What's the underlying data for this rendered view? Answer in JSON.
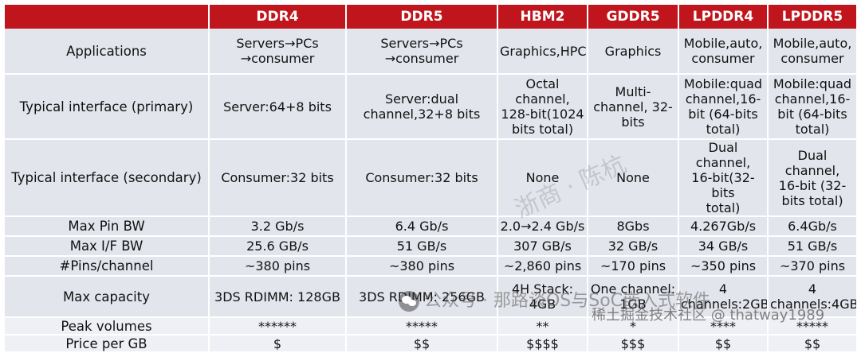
{
  "header": [
    "",
    "DDR4",
    "DDR5",
    "HBM2",
    "GDDR5",
    "LPDDR4",
    "LPDDR5"
  ],
  "rows": [
    [
      "Applications",
      "Servers→PCs\n→consumer",
      "Servers→PCs\n→consumer",
      "Graphics,HPC",
      "Graphics",
      "Mobile,auto,\nconsumer",
      "Mobile,auto,\nconsumer"
    ],
    [
      "Typical interface (primary)",
      "Server:64+8 bits",
      "Server:dual\nchannel,32+8 bits",
      "Octal channel,\n128-bit(1024\nbits total)",
      "Multi-\nchannel, 32-\nbits",
      "Mobile:quad\nchannel,16-\nbit (64-bits\ntotal)",
      "Mobile:quad\nchannel,16-\nbit (64-bits\ntotal)"
    ],
    [
      "Typical interface (secondary)",
      "Consumer:32 bits",
      "Consumer:32 bits",
      "None",
      "None",
      "Dual channel,\n16-bit(32-bits\ntotal)",
      "Dual channel,\n16-bit (32-\nbits total)"
    ],
    [
      "Max Pin BW",
      "3.2 Gb/s",
      "6.4 Gb/s",
      "2.0→2.4 Gb/s",
      "8Gbs",
      "4.267Gb/s",
      "6.4Gb/s"
    ],
    [
      "Max I/F BW",
      "25.6 GB/s",
      "51 GB/s",
      "307 GB/s",
      "32 GB/s",
      "34 GB/s",
      "51 GB/s"
    ],
    [
      "#Pins/channel",
      "~380 pins",
      "~380 pins",
      "~2,860 pins",
      "~170 pins",
      "~350 pins",
      "~370 pins"
    ],
    [
      "Max capacity",
      "3DS RDIMM: 128GB",
      "3DS RDIMM: 256GB",
      "4H Stack: 4GB",
      "One channel:\n1GB",
      "4\nchannels:2GB",
      "4\nchannels:4GB"
    ],
    [
      "Peak volumes",
      "******",
      "*****",
      "**",
      "*",
      "****",
      "*****"
    ],
    [
      "Price per GB",
      "$",
      "$$",
      "$$$$",
      "$$$",
      "$$",
      "$$"
    ]
  ],
  "watermarks": {
    "diagonal": "浙商 · 陈杭",
    "account": "公众号 · 那路谈OS与SoC嵌入式软件",
    "community": "稀土掘金技术社区 @ thatway1989"
  }
}
